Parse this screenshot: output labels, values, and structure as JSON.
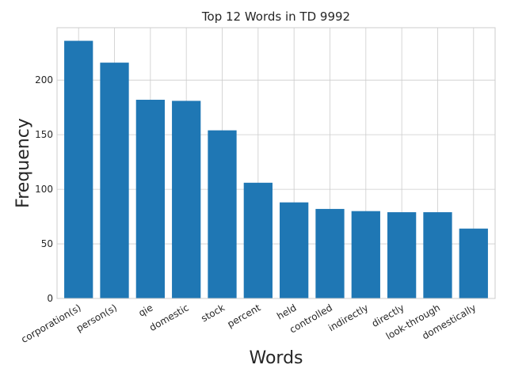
{
  "chart_data": {
    "type": "bar",
    "title": "Top 12 Words in TD 9992",
    "xlabel": "Words",
    "ylabel": "Frequency",
    "categories": [
      "corporation(s)",
      "person(s)",
      "qie",
      "domestic",
      "stock",
      "percent",
      "held",
      "controlled",
      "indirectly",
      "directly",
      "look-through",
      "domestically"
    ],
    "values": [
      236,
      216,
      182,
      181,
      154,
      106,
      88,
      82,
      80,
      79,
      79,
      64
    ],
    "ylim": [
      0,
      248
    ],
    "yticks": [
      0,
      50,
      100,
      150,
      200
    ],
    "bar_color": "#1f77b4",
    "grid": true,
    "legend": "none"
  }
}
